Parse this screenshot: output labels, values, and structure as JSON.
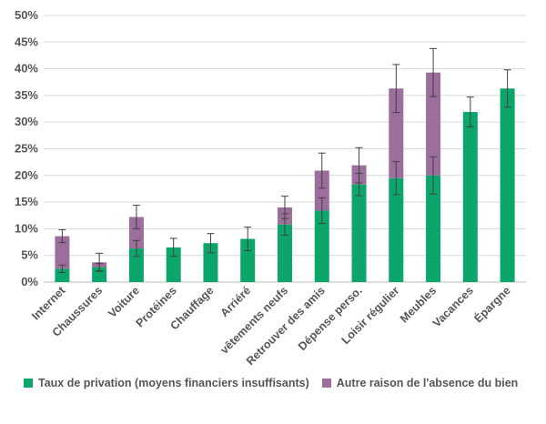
{
  "chart_data": {
    "type": "bar",
    "stacked": true,
    "categories": [
      "Internet",
      "Chaussures",
      "Voiture",
      "Protéines",
      "Chauffage",
      "Arriéré",
      "vêtements neufs",
      "Retrouver des amis",
      "Dépense perso.",
      "Loisir régulier",
      "Meubles",
      "Vacances",
      "Épargne"
    ],
    "series": [
      {
        "name": "Taux de privation (moyens financiers insuffisants)",
        "color": "#0ca56b",
        "values": [
          2.5,
          2.8,
          6.3,
          6.5,
          7.3,
          8.1,
          10.8,
          13.4,
          18.3,
          19.5,
          20.0,
          31.9,
          36.3
        ],
        "errors": [
          0.7,
          0.7,
          1.5,
          1.7,
          1.8,
          2.2,
          2.0,
          2.4,
          2.1,
          3.1,
          3.5,
          2.8,
          3.5
        ]
      },
      {
        "name": "Autre raison de l'absence du bien",
        "color": "#9b6e9b",
        "values": [
          6.1,
          0.9,
          5.9,
          0,
          0,
          0,
          3.2,
          7.5,
          3.6,
          16.8,
          19.3,
          0,
          0
        ],
        "totals_errors": [
          1.2,
          1.7,
          2.2,
          null,
          null,
          null,
          2.1,
          3.3,
          3.3,
          4.5,
          4.5,
          null,
          null
        ]
      }
    ],
    "ylim": [
      0,
      50
    ],
    "yticks": [
      "0%",
      "5%",
      "10%",
      "15%",
      "20%",
      "25%",
      "30%",
      "35%",
      "40%",
      "45%",
      "50%"
    ],
    "grid": true,
    "legend_position": "bottom"
  }
}
